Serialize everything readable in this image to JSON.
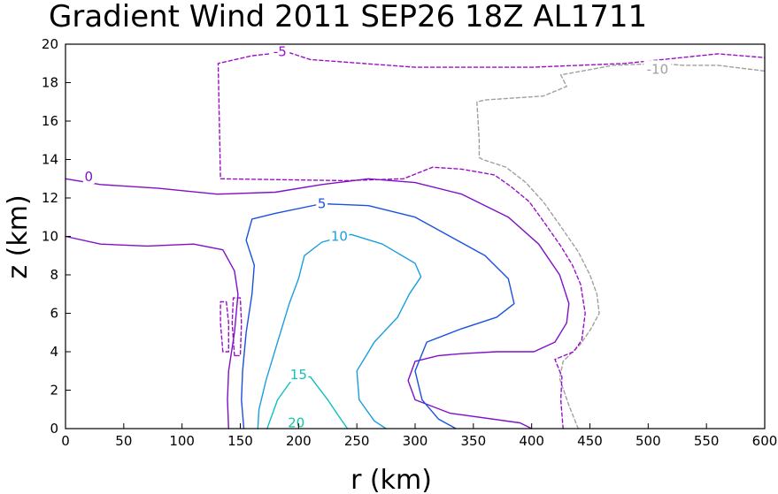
{
  "chart_data": {
    "type": "contour",
    "title": "Gradient Wind 2011 SEP26 18Z  AL1711",
    "xlabel": "r (km)",
    "ylabel": "z (km)",
    "xlim": [
      0,
      600
    ],
    "ylim": [
      0,
      20
    ],
    "xticks": [
      "0",
      "50",
      "100",
      "150",
      "200",
      "250",
      "300",
      "350",
      "400",
      "450",
      "500",
      "550",
      "600"
    ],
    "yticks": [
      "0",
      "2",
      "4",
      "6",
      "8",
      "10",
      "12",
      "14",
      "16",
      "18",
      "20"
    ],
    "grid": false,
    "colors": {
      "neg10": "#a0a0a0",
      "neg5": "#9a10c8",
      "zero": "#7f10c8",
      "five": "#1a50e0",
      "ten": "#1a9ee0",
      "fifteen": "#10c0c0",
      "twenty": "#10c8a0"
    },
    "contours": [
      {
        "level": -10,
        "label": "-10",
        "color": "#a0a0a0",
        "dash": true,
        "label_at": [
          508,
          18.7
        ],
        "paths": [
          [
            [
              440,
              0
            ],
            [
              432,
              1.2
            ],
            [
              424,
              2.6
            ],
            [
              427,
              3.5
            ],
            [
              442,
              4.4
            ],
            [
              451,
              5.2
            ],
            [
              458,
              6.0
            ],
            [
              456,
              7.0
            ],
            [
              450,
              8.0
            ],
            [
              440,
              9.2
            ],
            [
              424,
              10.6
            ],
            [
              410,
              11.8
            ],
            [
              395,
              12.8
            ],
            [
              378,
              13.6
            ],
            [
              358,
              14.0
            ],
            [
              355,
              14.1
            ],
            [
              355,
              15.0
            ],
            [
              353,
              17.0
            ],
            [
              360,
              17.1
            ],
            [
              410,
              17.3
            ],
            [
              430,
              17.8
            ],
            [
              425,
              18.4
            ],
            [
              470,
              18.9
            ],
            [
              510,
              19.0
            ],
            [
              530,
              18.9
            ],
            [
              560,
              18.9
            ],
            [
              600,
              18.6
            ]
          ]
        ]
      },
      {
        "level": -5,
        "label": "-5",
        "color": "#9a10c8",
        "dash": true,
        "label_at": [
          184,
          19.6
        ],
        "paths": [
          [
            [
              427,
              0
            ],
            [
              425,
              1.5
            ],
            [
              426,
              2.7
            ],
            [
              420,
              3.6
            ],
            [
              436,
              4.0
            ],
            [
              443,
              4.6
            ],
            [
              446,
              6.0
            ],
            [
              442,
              7.5
            ],
            [
              435,
              8.5
            ],
            [
              425,
              9.5
            ],
            [
              410,
              10.8
            ],
            [
              398,
              11.8
            ],
            [
              382,
              12.6
            ],
            [
              368,
              13.2
            ],
            [
              340,
              13.5
            ],
            [
              315,
              13.6
            ],
            [
              290,
              13.0
            ],
            [
              240,
              12.9
            ],
            [
              133,
              13.0
            ],
            [
              132,
              16.0
            ],
            [
              131,
              19.0
            ],
            [
              160,
              19.4
            ],
            [
              190,
              19.6
            ],
            [
              210,
              19.2
            ],
            [
              300,
              18.8
            ],
            [
              400,
              18.8
            ],
            [
              480,
              19.0
            ],
            [
              560,
              19.5
            ],
            [
              600,
              19.3
            ]
          ],
          [
            [
              135,
              4.0
            ],
            [
              133,
              5.5
            ],
            [
              133,
              6.6
            ],
            [
              138,
              6.6
            ],
            [
              140,
              5.5
            ],
            [
              140,
              4.0
            ],
            [
              135,
              4.0
            ]
          ],
          [
            [
              145,
              3.8
            ],
            [
              143,
              5.5
            ],
            [
              144,
              6.8
            ],
            [
              150,
              6.8
            ],
            [
              151,
              5.5
            ],
            [
              150,
              3.8
            ],
            [
              145,
              3.8
            ]
          ]
        ]
      },
      {
        "level": 0,
        "label": "0",
        "color": "#7f10c8",
        "dash": false,
        "label_at": [
          20,
          13.1
        ],
        "paths": [
          [
            [
              0,
              13.0
            ],
            [
              30,
              12.7
            ],
            [
              80,
              12.5
            ],
            [
              130,
              12.2
            ],
            [
              180,
              12.3
            ],
            [
              220,
              12.7
            ],
            [
              260,
              13.0
            ],
            [
              300,
              12.8
            ],
            [
              340,
              12.2
            ],
            [
              380,
              11.0
            ],
            [
              406,
              9.6
            ],
            [
              424,
              8.0
            ],
            [
              432,
              6.5
            ],
            [
              430,
              5.5
            ],
            [
              420,
              4.5
            ],
            [
              402,
              4.0
            ],
            [
              370,
              4.0
            ],
            [
              340,
              3.9
            ],
            [
              320,
              3.8
            ],
            [
              300,
              3.5
            ],
            [
              294,
              2.5
            ],
            [
              300,
              1.5
            ],
            [
              330,
              0.8
            ],
            [
              390,
              0.3
            ],
            [
              400,
              0
            ]
          ],
          [
            [
              0,
              10.0
            ],
            [
              30,
              9.6
            ],
            [
              70,
              9.5
            ],
            [
              110,
              9.6
            ],
            [
              135,
              9.3
            ],
            [
              145,
              8.2
            ],
            [
              148,
              7.0
            ],
            [
              145,
              5.0
            ],
            [
              140,
              3.0
            ],
            [
              139,
              1.5
            ],
            [
              140,
              0
            ]
          ]
        ]
      },
      {
        "level": 5,
        "label": "5",
        "color": "#1a50e0",
        "dash": false,
        "label_at": [
          220,
          11.7
        ],
        "paths": [
          [
            [
              153,
              0
            ],
            [
              151,
              1.5
            ],
            [
              152,
              3.0
            ],
            [
              155,
              5.0
            ],
            [
              160,
              7.0
            ],
            [
              162,
              8.5
            ],
            [
              155,
              9.8
            ],
            [
              160,
              10.9
            ],
            [
              180,
              11.2
            ],
            [
              220,
              11.7
            ],
            [
              260,
              11.6
            ],
            [
              300,
              11.0
            ],
            [
              330,
              10.0
            ],
            [
              360,
              9.0
            ],
            [
              380,
              7.8
            ],
            [
              385,
              6.5
            ],
            [
              370,
              5.8
            ],
            [
              340,
              5.2
            ],
            [
              310,
              4.5
            ],
            [
              300,
              3.0
            ],
            [
              306,
              1.5
            ],
            [
              320,
              0.5
            ],
            [
              335,
              0
            ]
          ]
        ]
      },
      {
        "level": 10,
        "label": "10",
        "color": "#1a9ee0",
        "dash": false,
        "label_at": [
          235,
          10.0
        ],
        "paths": [
          [
            [
              165,
              0
            ],
            [
              166,
              1.0
            ],
            [
              172,
              2.5
            ],
            [
              182,
              4.5
            ],
            [
              192,
              6.5
            ],
            [
              200,
              7.8
            ],
            [
              205,
              9.0
            ],
            [
              220,
              9.7
            ],
            [
              245,
              10.1
            ],
            [
              272,
              9.6
            ],
            [
              300,
              8.6
            ],
            [
              305,
              7.9
            ],
            [
              295,
              7.0
            ],
            [
              285,
              5.8
            ],
            [
              265,
              4.5
            ],
            [
              250,
              3.0
            ],
            [
              252,
              1.5
            ],
            [
              265,
              0.4
            ],
            [
              275,
              0
            ]
          ]
        ]
      },
      {
        "level": 15,
        "label": "15",
        "color": "#10c0c0",
        "dash": false,
        "label_at": [
          200,
          2.8
        ],
        "paths": [
          [
            [
              173,
              0
            ],
            [
              182,
              1.5
            ],
            [
              195,
              2.6
            ],
            [
              210,
              2.7
            ],
            [
              225,
              1.5
            ],
            [
              235,
              0.6
            ],
            [
              242,
              0
            ]
          ]
        ]
      },
      {
        "level": 20,
        "label": "20",
        "color": "#10c8a0",
        "dash": false,
        "label_at": [
          198,
          0.3
        ],
        "paths": []
      }
    ]
  }
}
